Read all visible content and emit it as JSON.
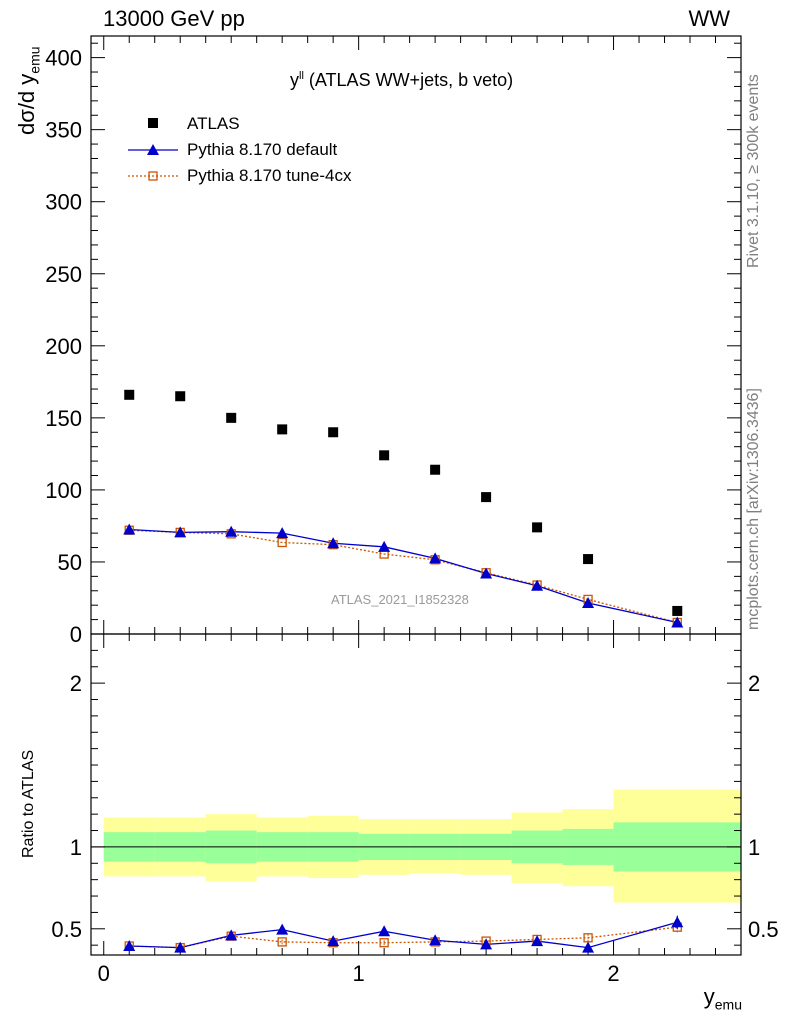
{
  "header": {
    "left": "13000 GeV pp",
    "right": "WW"
  },
  "side_labels": {
    "rivet": "Rivet 3.1.10, ≥ 300k events",
    "mcplots": "mcplots.cern.ch [arXiv:1306.3436]"
  },
  "plot_title_main": "y",
  "plot_title_sup": "ll",
  "plot_title_rest": " (ATLAS WW+jets, b veto)",
  "watermark": "ATLAS_2021_I1852328",
  "axis_labels": {
    "y_top": "dσ/d y",
    "y_top_sub": "emu",
    "y_bottom": "Ratio to ATLAS",
    "x": "y",
    "x_sub": "emu"
  },
  "legend": [
    {
      "label": "ATLAS",
      "marker": "square",
      "color": "#000000"
    },
    {
      "label": "Pythia 8.170 default",
      "marker": "triangle",
      "color": "#0000cc"
    },
    {
      "label": "Pythia 8.170 tune-4cx",
      "marker": "open-square",
      "color": "#cc5500"
    }
  ],
  "chart_data": [
    {
      "type": "scatter",
      "panel": "main",
      "x": [
        0.1,
        0.3,
        0.5,
        0.7,
        0.9,
        1.1,
        1.3,
        1.5,
        1.7,
        1.9,
        2.25
      ],
      "xlim": [
        -0.05,
        2.5
      ],
      "ylim": [
        0,
        415
      ],
      "xticks": [
        0,
        1,
        2
      ],
      "yticks": [
        0,
        50,
        100,
        150,
        200,
        250,
        300,
        350,
        400
      ],
      "series": [
        {
          "name": "ATLAS",
          "style": "points",
          "values": [
            166,
            165,
            150,
            142,
            140,
            124,
            114,
            95,
            74,
            52,
            16
          ]
        },
        {
          "name": "Pythia 8.170 default",
          "style": "line",
          "values": [
            72.5,
            70.5,
            71,
            70,
            63,
            60.5,
            52.5,
            42,
            33.5,
            21.5,
            8
          ]
        },
        {
          "name": "Pythia 8.170 tune-4cx",
          "style": "dotted",
          "values": [
            72,
            70.5,
            69.5,
            63.5,
            62,
            55.5,
            51.5,
            42.5,
            34,
            24,
            8
          ]
        }
      ]
    },
    {
      "type": "scatter",
      "panel": "ratio",
      "x": [
        0.1,
        0.3,
        0.5,
        0.7,
        0.9,
        1.1,
        1.3,
        1.5,
        1.7,
        1.9,
        2.25
      ],
      "xlim": [
        -0.05,
        2.5
      ],
      "ylim": [
        0.34,
        2.3
      ],
      "yticks": [
        0.5,
        1,
        2
      ],
      "reference": 1,
      "bands": {
        "bins": [
          [
            0.0,
            0.2
          ],
          [
            0.2,
            0.4
          ],
          [
            0.4,
            0.6
          ],
          [
            0.6,
            0.8
          ],
          [
            0.8,
            1.0
          ],
          [
            1.0,
            1.2
          ],
          [
            1.2,
            1.4
          ],
          [
            1.4,
            1.6
          ],
          [
            1.6,
            1.8
          ],
          [
            1.8,
            2.0
          ],
          [
            2.0,
            2.5
          ]
        ],
        "stat_low": [
          0.91,
          0.91,
          0.9,
          0.91,
          0.91,
          0.92,
          0.92,
          0.92,
          0.9,
          0.89,
          0.85
        ],
        "stat_high": [
          1.09,
          1.09,
          1.1,
          1.09,
          1.09,
          1.08,
          1.08,
          1.08,
          1.1,
          1.11,
          1.15
        ],
        "total_low": [
          0.82,
          0.82,
          0.79,
          0.82,
          0.81,
          0.83,
          0.84,
          0.83,
          0.78,
          0.76,
          0.66
        ],
        "total_high": [
          1.18,
          1.18,
          1.2,
          1.18,
          1.19,
          1.17,
          1.17,
          1.17,
          1.21,
          1.23,
          1.35
        ]
      },
      "series": [
        {
          "name": "Pythia 8.170 default",
          "style": "line",
          "values": [
            0.395,
            0.385,
            0.46,
            0.495,
            0.425,
            0.485,
            0.43,
            0.405,
            0.425,
            0.385,
            0.54
          ],
          "errors": [
            0.01,
            0.01,
            0.02,
            0.015,
            0.02,
            0.015,
            0.02,
            0.02,
            0.02,
            0.025,
            0.04
          ]
        },
        {
          "name": "Pythia 8.170 tune-4cx",
          "style": "dotted",
          "values": [
            0.395,
            0.385,
            0.455,
            0.42,
            0.415,
            0.415,
            0.42,
            0.425,
            0.435,
            0.445,
            0.51
          ],
          "errors": [
            0.01,
            0.01,
            0.015,
            0.015,
            0.015,
            0.015,
            0.015,
            0.015,
            0.02,
            0.025,
            0.035
          ]
        }
      ]
    }
  ]
}
